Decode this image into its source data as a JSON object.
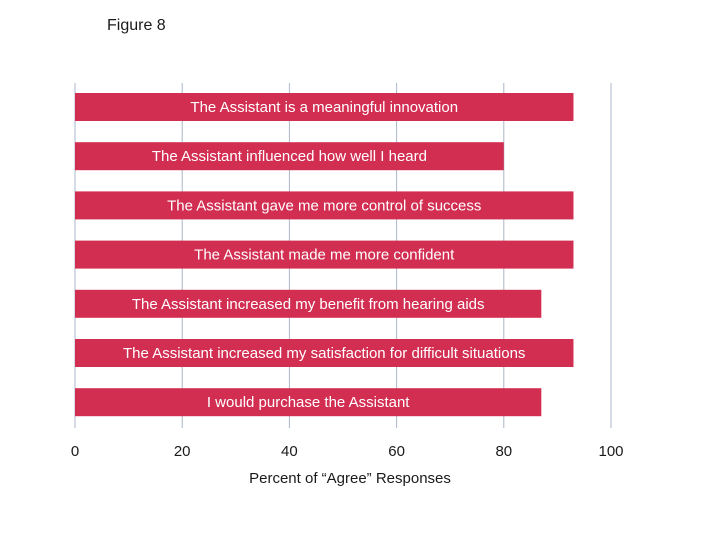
{
  "figure_label": "Figure 8",
  "chart_data": {
    "type": "bar",
    "orientation": "horizontal",
    "categories": [
      "The Assistant is a meaningful innovation",
      "The Assistant influenced how well I heard",
      "The Assistant gave me more control of success",
      "The Assistant made me more confident",
      "The Assistant increased my benefit from hearing aids",
      "The Assistant increased my satisfaction for difficult situations",
      "I would purchase the Assistant"
    ],
    "values": [
      93,
      80,
      93,
      93,
      87,
      93,
      87
    ],
    "xlabel": "Percent of “Agree” Responses",
    "xlim": [
      0,
      100
    ],
    "xticks": [
      0,
      20,
      40,
      60,
      80,
      100
    ],
    "grid": "vertical",
    "bar_color": "#d22e52",
    "label_placement": "inside-bar"
  }
}
